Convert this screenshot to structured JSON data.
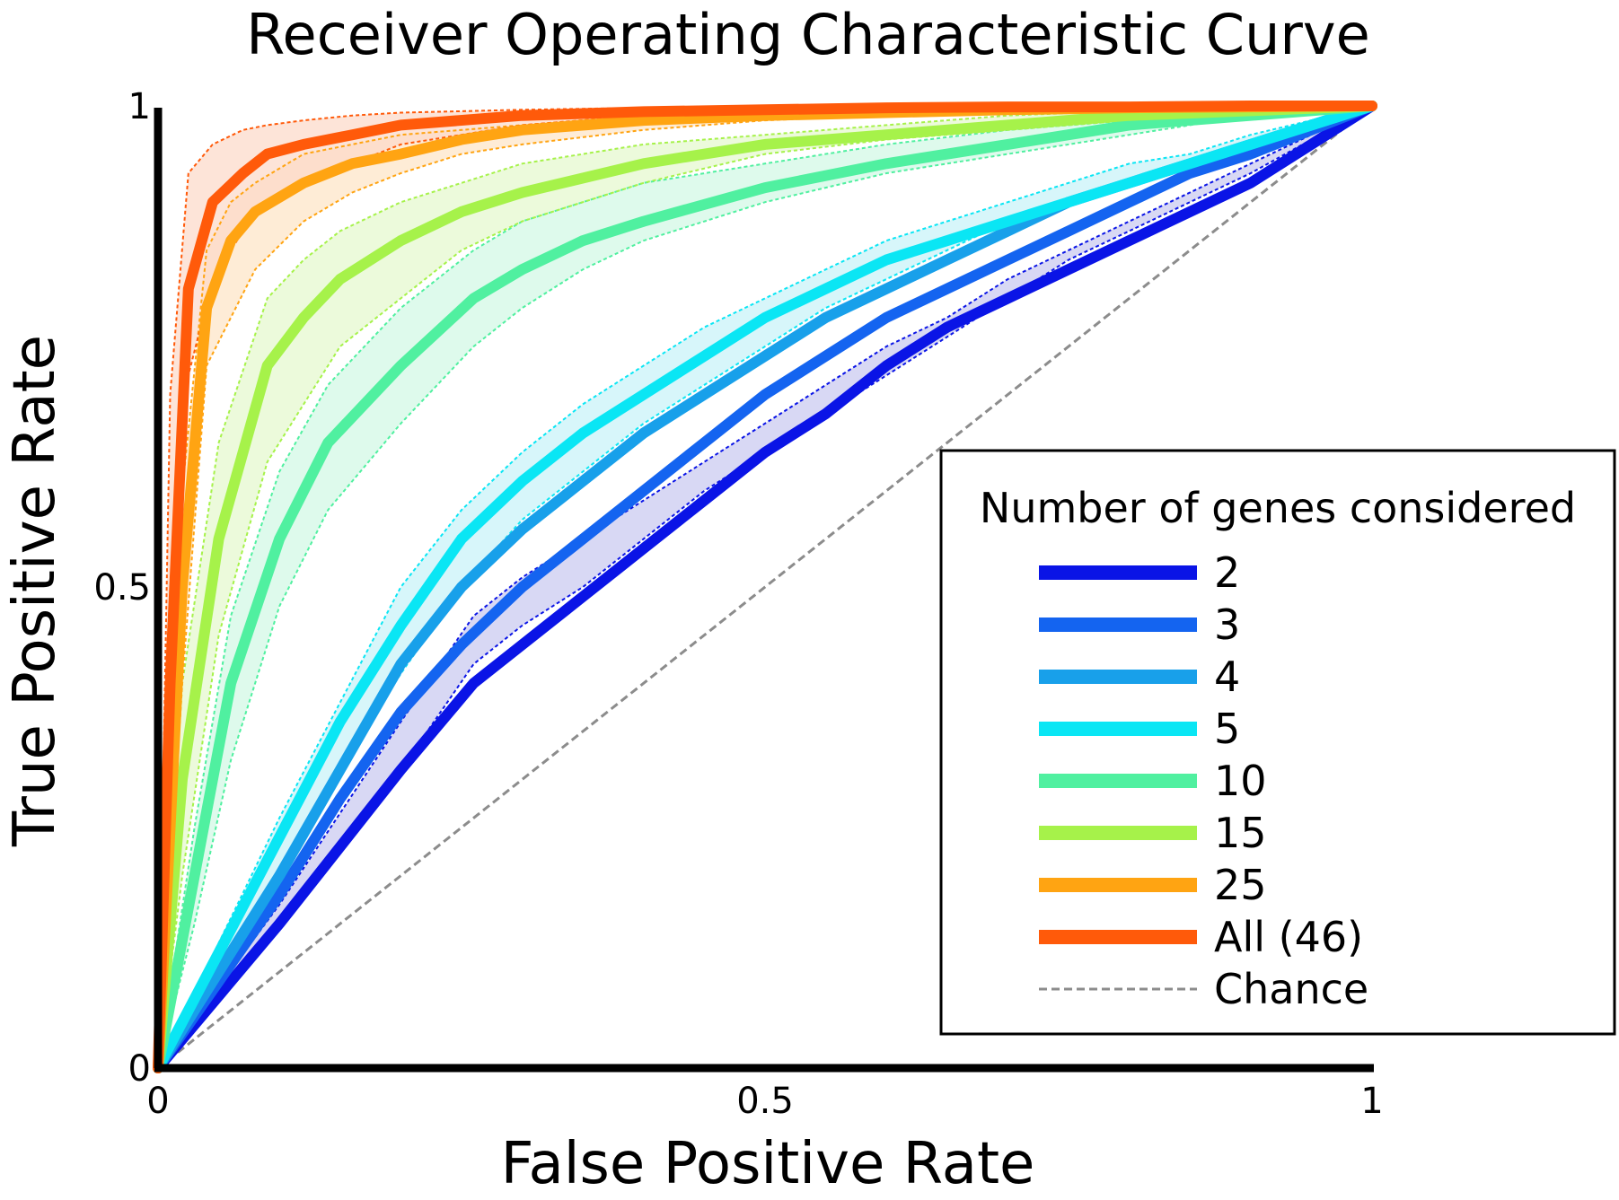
{
  "chart_data": {
    "type": "line",
    "title": "Receiver Operating Characteristic Curve",
    "xlabel": "False Positive Rate",
    "ylabel": "True Positive Rate",
    "xlim": [
      0,
      1
    ],
    "ylim": [
      0,
      1
    ],
    "xticks": [
      "0",
      "0.5",
      "1"
    ],
    "yticks": [
      "0",
      "0.5",
      "1"
    ],
    "grid": false,
    "legend": {
      "title": "Number of genes considered",
      "position": "bottom-right"
    },
    "series": [
      {
        "name": "2",
        "color": "#0a14e6",
        "fill": "#c8c8f0",
        "x": [
          0,
          0.1,
          0.2,
          0.26,
          0.3,
          0.35,
          0.4,
          0.45,
          0.5,
          0.55,
          0.6,
          0.65,
          0.7,
          0.75,
          0.8,
          0.85,
          0.9,
          1
        ],
        "y": [
          0,
          0.15,
          0.31,
          0.4,
          0.44,
          0.49,
          0.54,
          0.59,
          0.64,
          0.68,
          0.73,
          0.77,
          0.8,
          0.83,
          0.86,
          0.89,
          0.92,
          1
        ],
        "upper": [
          0,
          0.17,
          0.36,
          0.47,
          0.51,
          0.55,
          0.59,
          0.63,
          0.67,
          0.71,
          0.75,
          0.78,
          0.82,
          0.85,
          0.88,
          0.91,
          0.94,
          1
        ],
        "lower": [
          0,
          0.15,
          0.31,
          0.42,
          0.46,
          0.5,
          0.55,
          0.6,
          0.64,
          0.68,
          0.72,
          0.76,
          0.8,
          0.84,
          0.87,
          0.9,
          0.93,
          1
        ]
      },
      {
        "name": "3",
        "color": "#1464f0",
        "fill": "#c0d4f4",
        "x": [
          0,
          0.05,
          0.1,
          0.15,
          0.2,
          0.25,
          0.3,
          0.35,
          0.4,
          0.45,
          0.5,
          0.55,
          0.6,
          0.65,
          0.7,
          0.75,
          0.8,
          0.85,
          0.9,
          1
        ],
        "y": [
          0,
          0.09,
          0.18,
          0.28,
          0.37,
          0.44,
          0.5,
          0.55,
          0.6,
          0.65,
          0.7,
          0.74,
          0.78,
          0.81,
          0.84,
          0.87,
          0.9,
          0.93,
          0.95,
          1
        ]
      },
      {
        "name": "4",
        "color": "#18a0ea",
        "fill": "#c4e4f6",
        "x": [
          0,
          0.05,
          0.1,
          0.15,
          0.2,
          0.25,
          0.3,
          0.35,
          0.4,
          0.45,
          0.5,
          0.55,
          0.6,
          0.65,
          0.7,
          0.75,
          0.8,
          0.85,
          0.9,
          1
        ],
        "y": [
          0,
          0.1,
          0.2,
          0.31,
          0.42,
          0.5,
          0.56,
          0.61,
          0.66,
          0.7,
          0.74,
          0.78,
          0.81,
          0.84,
          0.87,
          0.9,
          0.92,
          0.94,
          0.96,
          1
        ]
      },
      {
        "name": "5",
        "color": "#0ae6f4",
        "fill": "#c6f2f8",
        "x": [
          0,
          0.05,
          0.1,
          0.15,
          0.2,
          0.25,
          0.3,
          0.35,
          0.4,
          0.45,
          0.5,
          0.55,
          0.6,
          0.65,
          0.7,
          0.75,
          0.8,
          0.85,
          0.9,
          1
        ],
        "y": [
          0,
          0.12,
          0.24,
          0.36,
          0.46,
          0.55,
          0.61,
          0.66,
          0.7,
          0.74,
          0.78,
          0.81,
          0.84,
          0.86,
          0.88,
          0.9,
          0.92,
          0.94,
          0.96,
          1
        ],
        "upper": [
          0,
          0.13,
          0.26,
          0.38,
          0.5,
          0.58,
          0.64,
          0.69,
          0.73,
          0.77,
          0.8,
          0.83,
          0.86,
          0.88,
          0.9,
          0.92,
          0.94,
          0.95,
          0.97,
          1
        ],
        "lower": [
          0,
          0.1,
          0.2,
          0.31,
          0.41,
          0.5,
          0.57,
          0.62,
          0.67,
          0.71,
          0.75,
          0.79,
          0.82,
          0.85,
          0.88,
          0.9,
          0.92,
          0.94,
          0.96,
          1
        ]
      },
      {
        "name": "10",
        "color": "#50f0a0",
        "fill": "#d0f8e4",
        "x": [
          0,
          0.03,
          0.06,
          0.1,
          0.14,
          0.2,
          0.26,
          0.3,
          0.35,
          0.4,
          0.5,
          0.6,
          0.7,
          0.8,
          0.9,
          1
        ],
        "y": [
          0,
          0.2,
          0.4,
          0.55,
          0.65,
          0.73,
          0.8,
          0.83,
          0.86,
          0.88,
          0.915,
          0.94,
          0.96,
          0.98,
          0.99,
          1
        ],
        "upper": [
          0,
          0.25,
          0.47,
          0.62,
          0.71,
          0.79,
          0.85,
          0.88,
          0.9,
          0.92,
          0.94,
          0.96,
          0.975,
          0.985,
          0.995,
          1
        ],
        "lower": [
          0,
          0.15,
          0.32,
          0.48,
          0.58,
          0.67,
          0.75,
          0.79,
          0.83,
          0.86,
          0.9,
          0.93,
          0.95,
          0.97,
          0.99,
          1
        ]
      },
      {
        "name": "15",
        "color": "#a6f24a",
        "fill": "#e4f8cc",
        "x": [
          0,
          0.02,
          0.05,
          0.09,
          0.12,
          0.15,
          0.2,
          0.25,
          0.3,
          0.4,
          0.5,
          0.6,
          0.7,
          0.8,
          0.9,
          1
        ],
        "y": [
          0,
          0.3,
          0.55,
          0.73,
          0.78,
          0.82,
          0.86,
          0.89,
          0.91,
          0.94,
          0.96,
          0.97,
          0.98,
          0.99,
          0.995,
          1
        ],
        "upper": [
          0,
          0.4,
          0.65,
          0.8,
          0.84,
          0.87,
          0.9,
          0.92,
          0.94,
          0.96,
          0.97,
          0.98,
          0.99,
          0.995,
          0.998,
          1
        ],
        "lower": [
          0,
          0.2,
          0.45,
          0.63,
          0.69,
          0.75,
          0.8,
          0.85,
          0.88,
          0.92,
          0.95,
          0.965,
          0.975,
          0.985,
          0.995,
          1
        ]
      },
      {
        "name": "25",
        "color": "#ffa412",
        "fill": "#fde4c4",
        "x": [
          0,
          0.02,
          0.04,
          0.06,
          0.08,
          0.12,
          0.16,
          0.2,
          0.25,
          0.3,
          0.4,
          0.5,
          0.6,
          0.7,
          0.8,
          0.9,
          1
        ],
        "y": [
          0,
          0.5,
          0.79,
          0.86,
          0.89,
          0.92,
          0.94,
          0.95,
          0.965,
          0.975,
          0.985,
          0.99,
          0.993,
          0.996,
          0.998,
          0.999,
          1
        ],
        "upper": [
          0,
          0.6,
          0.85,
          0.9,
          0.92,
          0.95,
          0.96,
          0.97,
          0.975,
          0.98,
          0.99,
          0.993,
          0.996,
          0.998,
          0.999,
          0.999,
          1
        ],
        "lower": [
          0,
          0.4,
          0.73,
          0.78,
          0.83,
          0.88,
          0.91,
          0.93,
          0.95,
          0.96,
          0.975,
          0.985,
          0.99,
          0.994,
          0.997,
          0.999,
          1
        ]
      },
      {
        "name": "All (46)",
        "color": "#ff5a0a",
        "fill": "#fcd8c8",
        "x": [
          0,
          0.01,
          0.025,
          0.045,
          0.07,
          0.09,
          0.12,
          0.16,
          0.2,
          0.3,
          0.4,
          0.5,
          0.6,
          0.7,
          0.8,
          0.9,
          1
        ],
        "y": [
          0,
          0.4,
          0.81,
          0.9,
          0.93,
          0.95,
          0.96,
          0.97,
          0.98,
          0.99,
          0.994,
          0.996,
          0.998,
          0.999,
          0.999,
          1,
          1
        ],
        "upper": [
          0,
          0.7,
          0.93,
          0.96,
          0.975,
          0.98,
          0.985,
          0.99,
          0.993,
          0.996,
          0.998,
          0.999,
          0.999,
          1,
          1,
          1,
          1
        ],
        "lower": [
          0,
          0.3,
          0.72,
          0.82,
          0.87,
          0.9,
          0.92,
          0.94,
          0.96,
          0.98,
          0.99,
          0.993,
          0.996,
          0.998,
          0.999,
          1,
          1
        ]
      }
    ],
    "reference": {
      "name": "Chance",
      "color": "#8c8c8c",
      "x": [
        0,
        1
      ],
      "y": [
        0,
        1
      ]
    }
  }
}
